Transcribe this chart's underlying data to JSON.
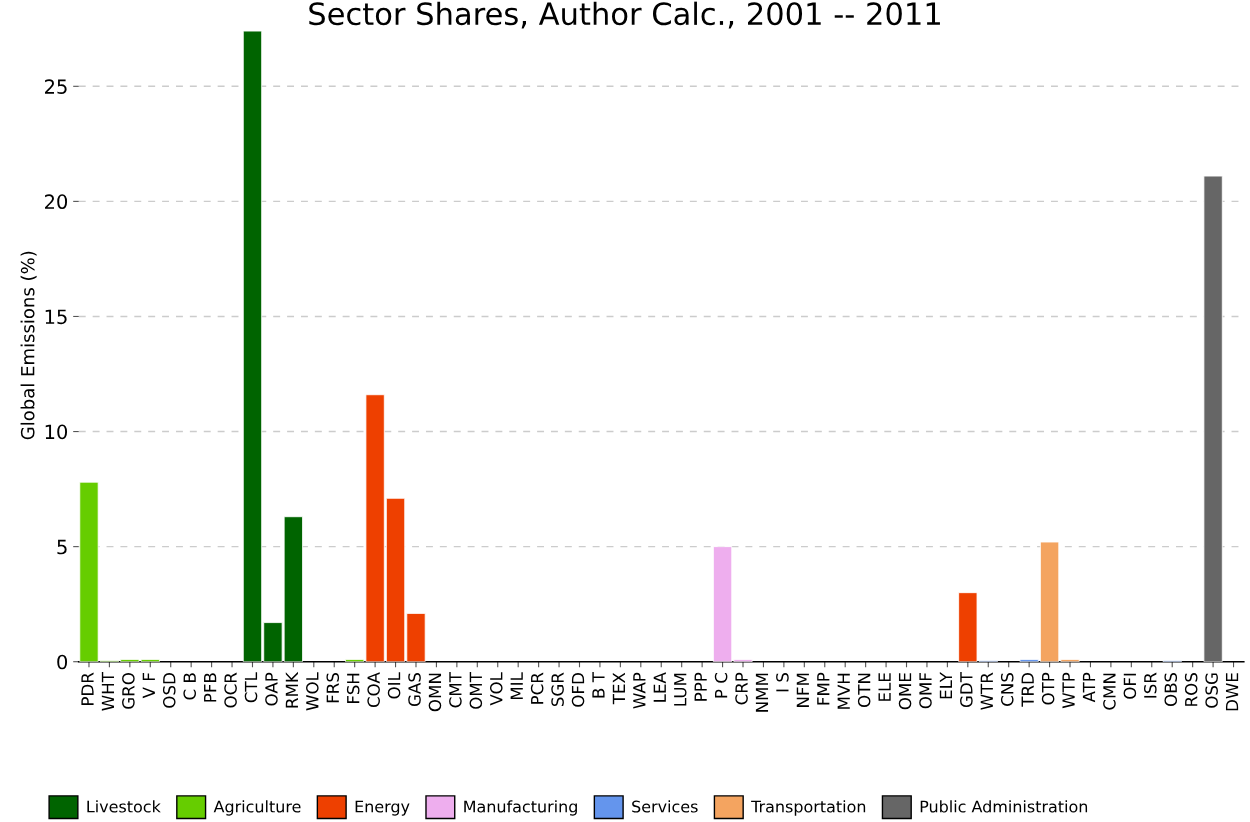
{
  "chart_data": {
    "type": "bar",
    "title": "Sector Shares, Author Calc., 2001 -- 2011",
    "ylabel": "Global Emissions (%)",
    "categories": [
      "PDR",
      "WHT",
      "GRO",
      "V F",
      "OSD",
      "C B",
      "PFB",
      "OCR",
      "CTL",
      "OAP",
      "RMK",
      "WOL",
      "FRS",
      "FSH",
      "COA",
      "OIL",
      "GAS",
      "OMN",
      "CMT",
      "OMT",
      "VOL",
      "MIL",
      "PCR",
      "SGR",
      "OFD",
      "B T",
      "TEX",
      "WAP",
      "LEA",
      "LUM",
      "PPP",
      "P C",
      "CRP",
      "NMM",
      "I S",
      "NFM",
      "FMP",
      "MVH",
      "OTN",
      "ELE",
      "OME",
      "OMF",
      "ELY",
      "GDT",
      "WTR",
      "CNS",
      "TRD",
      "OTP",
      "WTP",
      "ATP",
      "CMN",
      "OFI",
      "ISR",
      "OBS",
      "ROS",
      "OSG",
      "DWE"
    ],
    "series": [
      {
        "name": "Livestock",
        "color": "#006400",
        "values": [
          null,
          null,
          null,
          null,
          null,
          null,
          null,
          null,
          27.4,
          1.7,
          6.3,
          null,
          null,
          null,
          null,
          null,
          null,
          null,
          null,
          null,
          null,
          null,
          null,
          null,
          null,
          null,
          null,
          null,
          null,
          null,
          null,
          null,
          null,
          null,
          null,
          null,
          null,
          null,
          null,
          null,
          null,
          null,
          null,
          null,
          null,
          null,
          null,
          null,
          null,
          null,
          null,
          null,
          null,
          null,
          null,
          null,
          null
        ]
      },
      {
        "name": "Agriculture",
        "color": "#66cd00",
        "values": [
          7.8,
          0.05,
          0.1,
          0.1,
          null,
          null,
          null,
          null,
          null,
          null,
          null,
          null,
          null,
          0.1,
          null,
          null,
          null,
          null,
          null,
          null,
          null,
          null,
          null,
          null,
          null,
          null,
          null,
          null,
          null,
          null,
          null,
          null,
          null,
          null,
          null,
          null,
          null,
          null,
          null,
          null,
          null,
          null,
          null,
          null,
          null,
          null,
          null,
          null,
          null,
          null,
          null,
          null,
          null,
          null,
          null,
          null,
          null
        ]
      },
      {
        "name": "Energy",
        "color": "#ee4000",
        "values": [
          null,
          null,
          null,
          null,
          null,
          null,
          null,
          null,
          null,
          null,
          null,
          null,
          null,
          null,
          11.6,
          7.1,
          2.1,
          null,
          null,
          null,
          null,
          null,
          null,
          null,
          null,
          null,
          null,
          null,
          null,
          null,
          null,
          null,
          null,
          null,
          null,
          null,
          null,
          null,
          null,
          null,
          null,
          null,
          null,
          3.0,
          null,
          null,
          null,
          null,
          null,
          null,
          null,
          null,
          null,
          null,
          null,
          null,
          null
        ]
      },
      {
        "name": "Manufacturing",
        "color": "#eeaeee",
        "values": [
          null,
          null,
          null,
          null,
          null,
          null,
          null,
          null,
          null,
          null,
          null,
          null,
          null,
          null,
          null,
          null,
          null,
          null,
          null,
          null,
          null,
          null,
          null,
          null,
          null,
          null,
          null,
          null,
          null,
          null,
          null,
          5.0,
          0.1,
          null,
          null,
          null,
          null,
          null,
          null,
          null,
          null,
          null,
          null,
          null,
          null,
          null,
          null,
          null,
          null,
          null,
          null,
          null,
          null,
          null,
          null,
          null,
          null
        ]
      },
      {
        "name": "Services",
        "color": "#6495ed",
        "values": [
          null,
          null,
          null,
          null,
          null,
          null,
          null,
          null,
          null,
          null,
          null,
          null,
          null,
          null,
          null,
          null,
          null,
          null,
          null,
          null,
          null,
          null,
          null,
          null,
          null,
          null,
          null,
          null,
          null,
          null,
          null,
          null,
          null,
          null,
          null,
          null,
          null,
          null,
          null,
          null,
          null,
          null,
          null,
          null,
          0.05,
          null,
          0.1,
          null,
          null,
          null,
          null,
          null,
          null,
          0.05,
          null,
          null,
          null
        ]
      },
      {
        "name": "Transportation",
        "color": "#f4a460",
        "values": [
          null,
          null,
          null,
          null,
          null,
          null,
          null,
          null,
          null,
          null,
          null,
          null,
          null,
          null,
          null,
          null,
          null,
          null,
          null,
          null,
          null,
          null,
          null,
          null,
          null,
          null,
          null,
          null,
          null,
          null,
          null,
          null,
          null,
          null,
          null,
          null,
          null,
          null,
          null,
          null,
          null,
          null,
          null,
          null,
          null,
          null,
          null,
          5.2,
          0.1,
          null,
          null,
          null,
          null,
          null,
          null,
          null,
          null
        ]
      },
      {
        "name": "Public Administration",
        "color": "#666666",
        "values": [
          null,
          null,
          null,
          null,
          null,
          null,
          null,
          null,
          null,
          null,
          null,
          null,
          null,
          null,
          null,
          null,
          null,
          null,
          null,
          null,
          null,
          null,
          null,
          null,
          null,
          null,
          null,
          null,
          null,
          null,
          null,
          null,
          null,
          null,
          null,
          null,
          null,
          null,
          null,
          null,
          null,
          null,
          null,
          null,
          null,
          null,
          null,
          null,
          null,
          null,
          null,
          null,
          null,
          null,
          null,
          21.1,
          null
        ]
      }
    ],
    "ylim": [
      0,
      27.5
    ],
    "yticks": [
      0,
      5,
      10,
      15,
      20,
      25
    ],
    "grid": "y",
    "legend": "bottom"
  }
}
